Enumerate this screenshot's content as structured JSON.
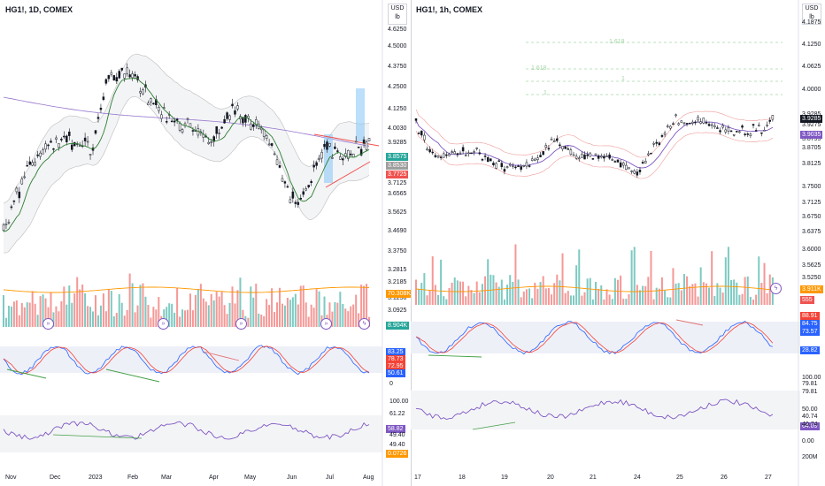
{
  "colors": {
    "up": "#26a69a",
    "down": "#ef5350",
    "ema": "#2e7d32",
    "bb": "#9e9e9e",
    "band": "#b0bec5",
    "k": "#2962ff",
    "d": "#f44336",
    "rsi": "#7e57c2",
    "vol_ma": "#ff9800",
    "fib": "#a5d6a7"
  },
  "left": {
    "symbol": "HG1!, 1D, COMEX",
    "unit_top": "USD",
    "unit_bottom": "lb",
    "price_ticks": [
      "4.6250",
      "4.5000",
      "4.3750",
      "4.2500",
      "4.1250",
      "4.0030",
      "3.9285",
      "3.7125",
      "3.6565",
      "3.5625",
      "3.4690",
      "3.3750",
      "3.2815",
      "3.2185",
      "3.1250",
      "3.0925"
    ],
    "badges": [
      {
        "text": "3.8575",
        "color": "#26a69a"
      },
      {
        "text": "3.8530",
        "color": "#9e9e9e"
      },
      {
        "text": "3.7725",
        "color": "#ef5350"
      },
      {
        "text": "70.308K",
        "color": "#ff9800"
      },
      {
        "text": "8.904K",
        "color": "#26a69a"
      },
      {
        "text": "83.25",
        "color": "#2962ff"
      },
      {
        "text": "78.73",
        "color": "#f44336"
      },
      {
        "text": "72.95",
        "color": "#f44336"
      },
      {
        "text": "50.61",
        "color": "#2962ff"
      },
      {
        "text": "58.82",
        "color": "#7e57c2"
      },
      {
        "text": "0.0726",
        "color": "#ff9800"
      }
    ],
    "stoch_ticks": [
      "0"
    ],
    "rsi_ticks": [
      "100.00",
      "61.22",
      "49.40",
      "49.40"
    ],
    "xlabels": [
      "Nov",
      "Dec",
      "2023",
      "Feb",
      "Mar",
      "Apr",
      "May",
      "Jun",
      "Jul",
      "Aug"
    ]
  },
  "right": {
    "symbol": "HG1!, 1h, COMEX",
    "unit_top": "USD",
    "unit_bottom": "lb",
    "price_ticks": [
      "4.1875",
      "4.1250",
      "4.0625",
      "4.0000",
      "3.9285",
      "3.9275",
      "3.8795",
      "3.8705",
      "3.8125",
      "3.7500",
      "3.7125",
      "3.6750",
      "3.6375",
      "3.6000",
      "3.5625",
      "3.5250"
    ],
    "badges": [
      {
        "text": "3.9285",
        "color": "#131722"
      },
      {
        "text": "3.9035",
        "color": "#7e57c2"
      },
      {
        "text": "3.911K",
        "color": "#ff9800"
      },
      {
        "text": "555",
        "color": "#ef5350"
      },
      {
        "text": "88.91",
        "color": "#f44336"
      },
      {
        "text": "84.75",
        "color": "#2962ff"
      },
      {
        "text": "73.57",
        "color": "#2962ff"
      },
      {
        "text": "28.82",
        "color": "#2962ff"
      },
      {
        "text": "64.89",
        "color": "#7e57c2"
      }
    ],
    "stoch_ticks": [
      "100.00",
      "79.81",
      "79.81"
    ],
    "rsi_ticks": [
      "50.00",
      "40.74",
      "40.74",
      "0.00",
      "200M"
    ],
    "fib_labels": [
      "1.618",
      "1.618",
      "1",
      "1"
    ],
    "xlabels": [
      "17",
      "18",
      "19",
      "20",
      "21",
      "24",
      "25",
      "26",
      "27"
    ]
  }
}
